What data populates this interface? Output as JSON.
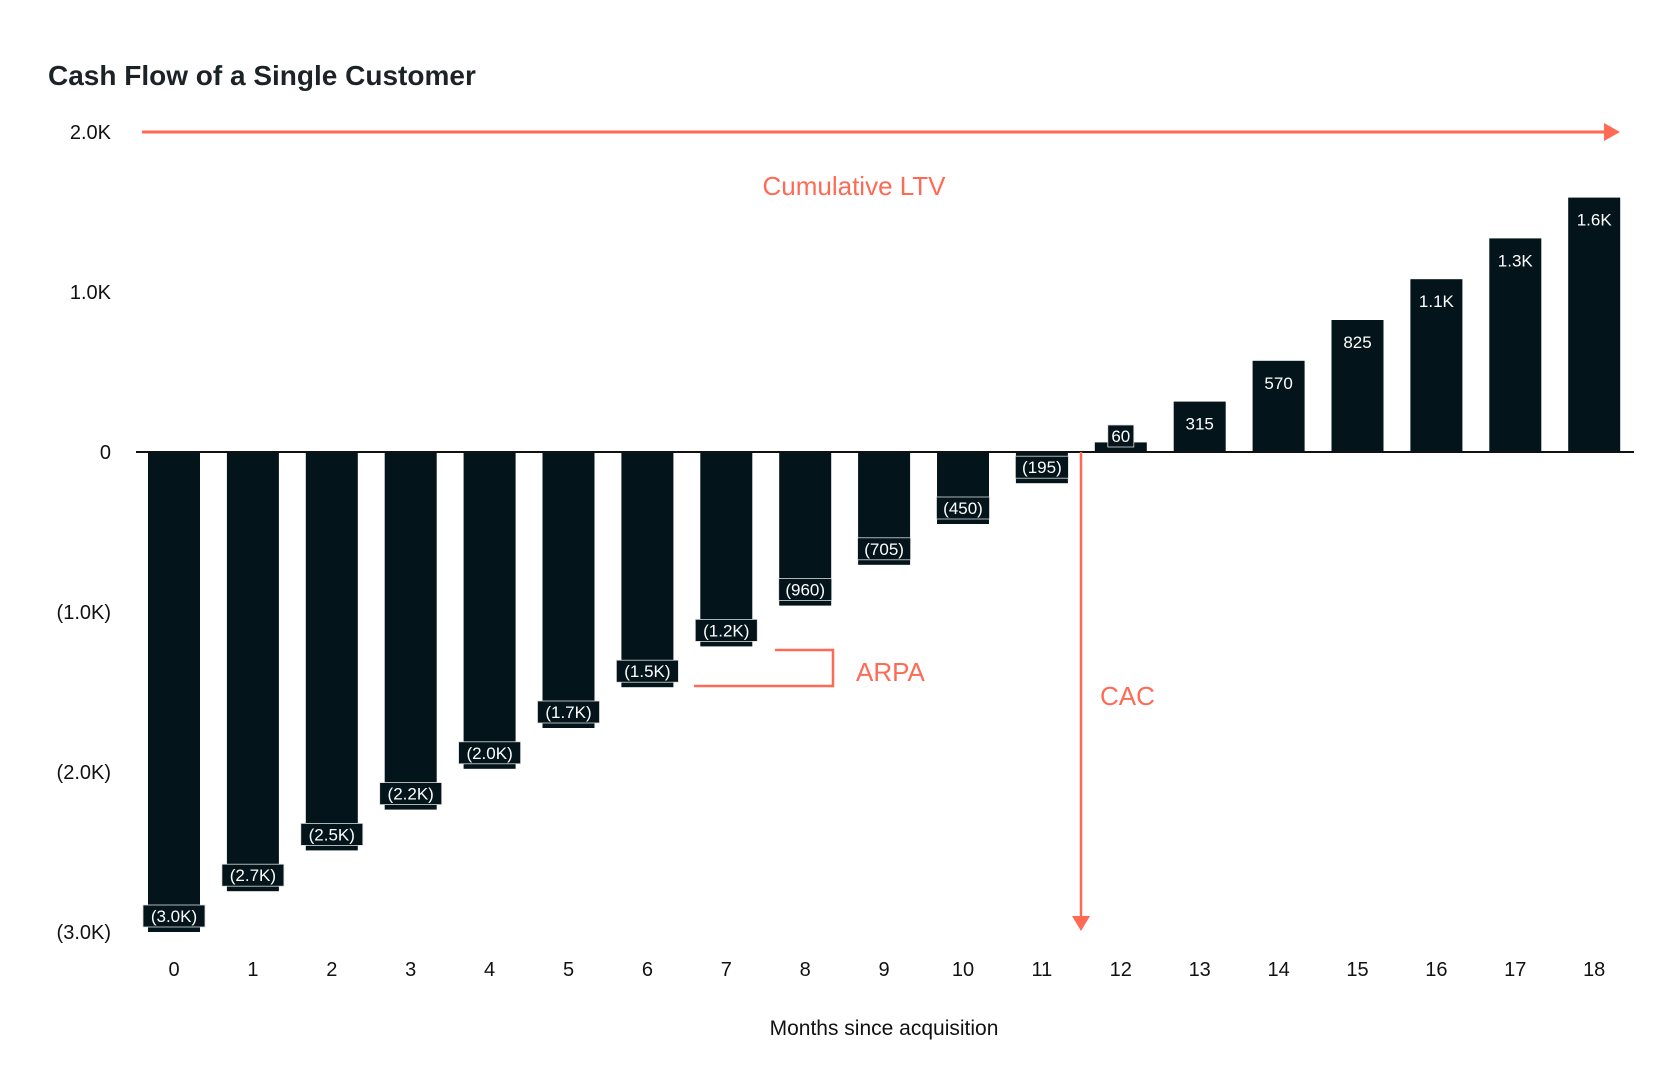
{
  "chart_data": {
    "type": "bar",
    "title": "Cash Flow of a Single Customer",
    "xlabel": "Months since acquisition",
    "ylabel": "",
    "ylim": [
      -3000,
      2000
    ],
    "yticks": [
      2000,
      1000,
      0,
      -1000,
      -2000,
      -3000
    ],
    "ytick_labels": [
      "2.0K",
      "1.0K",
      "0",
      "(1.0K)",
      "(2.0K)",
      "(3.0K)"
    ],
    "categories": [
      "0",
      "1",
      "2",
      "3",
      "4",
      "5",
      "6",
      "7",
      "8",
      "9",
      "10",
      "11",
      "12",
      "13",
      "14",
      "15",
      "16",
      "17",
      "18"
    ],
    "values": [
      -3000,
      -2745,
      -2490,
      -2235,
      -1980,
      -1725,
      -1470,
      -1215,
      -960,
      -705,
      -450,
      -195,
      60,
      315,
      570,
      825,
      1080,
      1335,
      1590
    ],
    "data_labels": [
      "(3.0K)",
      "(2.7K)",
      "(2.5K)",
      "(2.2K)",
      "(2.0K)",
      "(1.7K)",
      "(1.5K)",
      "(1.2K)",
      "(960)",
      "(705)",
      "(450)",
      "(195)",
      "60",
      "315",
      "570",
      "825",
      "1.1K",
      "1.3K",
      "1.6K"
    ],
    "grid": false,
    "annotations": {
      "ltv": {
        "label": "Cumulative LTV",
        "value": 2000
      },
      "arpa": {
        "label": "ARPA"
      },
      "cac": {
        "label": "CAC"
      }
    },
    "colors": {
      "bar": "#03141a",
      "annotation": "#ff6a55",
      "text": "#1c2326"
    }
  }
}
